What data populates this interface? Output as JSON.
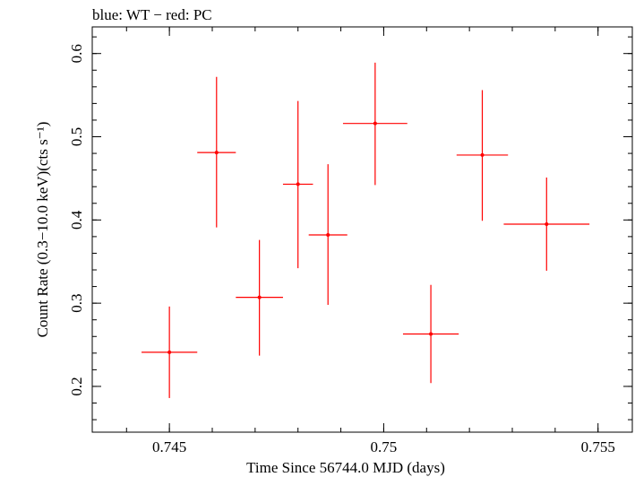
{
  "chart_data": {
    "type": "scatter",
    "title": "blue: WT − red: PC",
    "xlabel": "Time Since 56744.0 MJD (days)",
    "ylabel": "Count Rate (0.3−10.0 keV)(cts s⁻¹)",
    "xlim": [
      0.7432,
      0.7558
    ],
    "ylim": [
      0.145,
      0.632
    ],
    "x_ticks": [
      {
        "value": 0.745,
        "label": "0.745"
      },
      {
        "value": 0.75,
        "label": "0.75"
      },
      {
        "value": 0.755,
        "label": "0.755"
      }
    ],
    "y_ticks": [
      {
        "value": 0.2,
        "label": "0.2"
      },
      {
        "value": 0.3,
        "label": "0.3"
      },
      {
        "value": 0.4,
        "label": "0.4"
      },
      {
        "value": 0.5,
        "label": "0.5"
      },
      {
        "value": 0.6,
        "label": "0.6"
      }
    ],
    "x_minor_step": 0.001,
    "y_minor_step": 0.02,
    "grid": false,
    "series": [
      {
        "color": "#ff0000",
        "points": [
          {
            "x": 0.745,
            "xerr": 0.00065,
            "y": 0.241,
            "yerr_low": 0.055,
            "yerr_high": 0.055
          },
          {
            "x": 0.7461,
            "xerr": 0.00045,
            "y": 0.481,
            "yerr_low": 0.09,
            "yerr_high": 0.091
          },
          {
            "x": 0.7471,
            "xerr": 0.00055,
            "y": 0.307,
            "yerr_low": 0.07,
            "yerr_high": 0.069
          },
          {
            "x": 0.748,
            "xerr": 0.00035,
            "y": 0.443,
            "yerr_low": 0.101,
            "yerr_high": 0.1
          },
          {
            "x": 0.7487,
            "xerr": 0.00045,
            "y": 0.382,
            "yerr_low": 0.084,
            "yerr_high": 0.085
          },
          {
            "x": 0.7498,
            "xerr": 0.00075,
            "y": 0.516,
            "yerr_low": 0.074,
            "yerr_high": 0.073
          },
          {
            "x": 0.7511,
            "xerr": 0.00065,
            "y": 0.263,
            "yerr_low": 0.059,
            "yerr_high": 0.059
          },
          {
            "x": 0.7523,
            "xerr": 0.0006,
            "y": 0.478,
            "yerr_low": 0.079,
            "yerr_high": 0.078
          },
          {
            "x": 0.7538,
            "xerr": 0.001,
            "y": 0.395,
            "yerr_low": 0.056,
            "yerr_high": 0.056
          }
        ]
      }
    ]
  }
}
